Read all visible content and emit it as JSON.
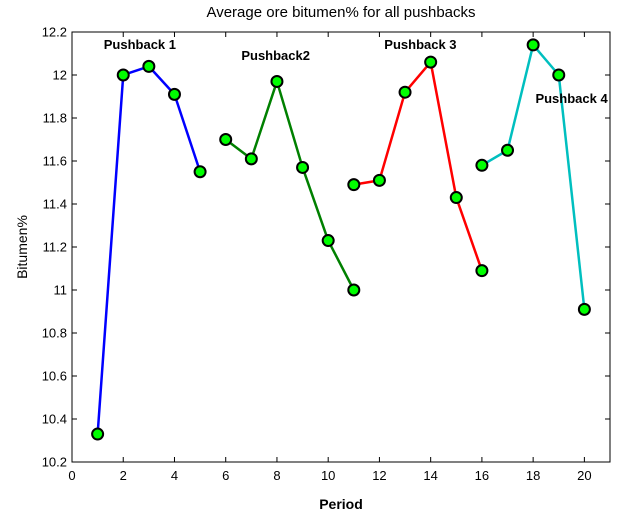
{
  "chart_data": {
    "type": "line",
    "title": "Average ore bitumen% for all pushbacks",
    "xlabel": "Period",
    "ylabel": "Bitumen%",
    "xlim": [
      0,
      21
    ],
    "ylim": [
      10.2,
      12.2
    ],
    "xticks": [
      0,
      2,
      4,
      6,
      8,
      10,
      12,
      14,
      16,
      18,
      20
    ],
    "yticks": [
      10.2,
      10.4,
      10.6,
      10.8,
      11,
      11.2,
      11.4,
      11.6,
      11.8,
      12,
      12.2
    ],
    "grid": false,
    "marker_color": "#00ff00",
    "series": [
      {
        "color": "#0000ff",
        "x": [
          1,
          2,
          3,
          4,
          5
        ],
        "y": [
          10.33,
          12.0,
          12.04,
          11.91,
          11.55
        ]
      },
      {
        "color": "#008000",
        "x": [
          6,
          7,
          8,
          9,
          10,
          11
        ],
        "y": [
          11.7,
          11.61,
          11.97,
          11.57,
          11.23,
          11.0
        ]
      },
      {
        "color": "#ff0000",
        "x": [
          11,
          12,
          13,
          14,
          15,
          16
        ],
        "y": [
          11.49,
          11.51,
          11.92,
          12.06,
          11.43,
          11.09
        ]
      },
      {
        "color": "#00bfbf",
        "x": [
          16,
          17,
          18,
          19,
          20
        ],
        "y": [
          11.58,
          11.65,
          12.14,
          12.0,
          10.91
        ]
      }
    ],
    "annotations": [
      {
        "text": "Pushback 1",
        "x": 2.65,
        "y": 12.12
      },
      {
        "text": "Pushback2",
        "x": 7.95,
        "y": 12.07
      },
      {
        "text": "Pushback 3",
        "x": 13.6,
        "y": 12.12
      },
      {
        "text": "Pushback 4",
        "x": 19.5,
        "y": 11.87
      }
    ]
  }
}
